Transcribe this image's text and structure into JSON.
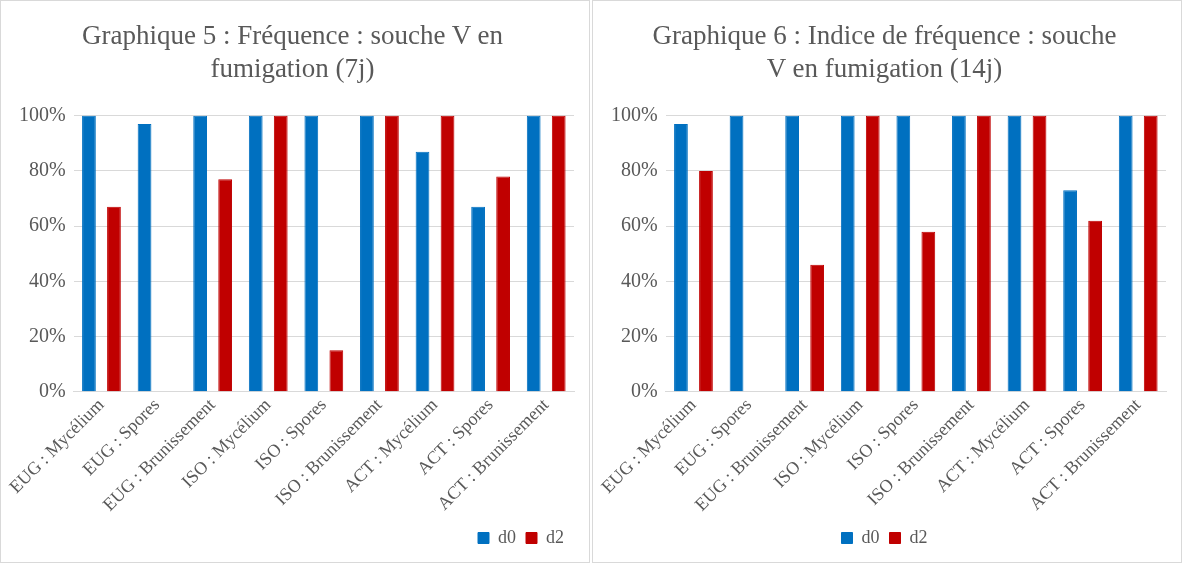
{
  "chart_data": [
    {
      "type": "bar",
      "title": "Graphique 5 : Fréquence : souche V en fumigation (7j)",
      "categories": [
        "EUG : Mycélium",
        "EUG : Spores",
        "EUG : Brunissement",
        "ISO : Mycélium",
        "ISO : Spores",
        "ISO : Brunissement",
        "ACT : Mycélium",
        "ACT : Spores",
        "ACT : Brunissement"
      ],
      "series": [
        {
          "name": "d0",
          "color": "#0070c0",
          "values": [
            100,
            97,
            100,
            100,
            100,
            100,
            87,
            67,
            100
          ]
        },
        {
          "name": "d2",
          "color": "#c00000",
          "values": [
            67,
            0,
            77,
            100,
            15,
            100,
            100,
            78,
            100
          ]
        }
      ],
      "ylim": [
        0,
        100
      ],
      "yticks": [
        {
          "value": 0,
          "label": "0%"
        },
        {
          "value": 20,
          "label": "20%"
        },
        {
          "value": 40,
          "label": "40%"
        },
        {
          "value": 60,
          "label": "60%"
        },
        {
          "value": 80,
          "label": "80%"
        },
        {
          "value": 100,
          "label": "100%"
        }
      ],
      "grid": "y",
      "legend": "bottom right"
    },
    {
      "type": "bar",
      "title": "Graphique 6 : Indice de fréquence : souche V en fumigation (14j)",
      "categories": [
        "EUG : Mycélium",
        "EUG : Spores",
        "EUG : Brunissement",
        "ISO : Mycélium",
        "ISO : Spores",
        "ISO : Brunissement",
        "ACT : Mycélium",
        "ACT : Spores",
        "ACT : Brunissement"
      ],
      "series": [
        {
          "name": "d0",
          "color": "#0070c0",
          "values": [
            97,
            100,
            100,
            100,
            100,
            100,
            100,
            73,
            100
          ]
        },
        {
          "name": "d2",
          "color": "#c00000",
          "values": [
            80,
            0,
            46,
            100,
            58,
            100,
            100,
            62,
            100
          ]
        }
      ],
      "ylim": [
        0,
        100
      ],
      "yticks": [
        {
          "value": 0,
          "label": "0%"
        },
        {
          "value": 20,
          "label": "20%"
        },
        {
          "value": 40,
          "label": "40%"
        },
        {
          "value": 60,
          "label": "60%"
        },
        {
          "value": 80,
          "label": "80%"
        },
        {
          "value": 100,
          "label": "100%"
        }
      ],
      "grid": "y",
      "legend": "bottom"
    }
  ]
}
